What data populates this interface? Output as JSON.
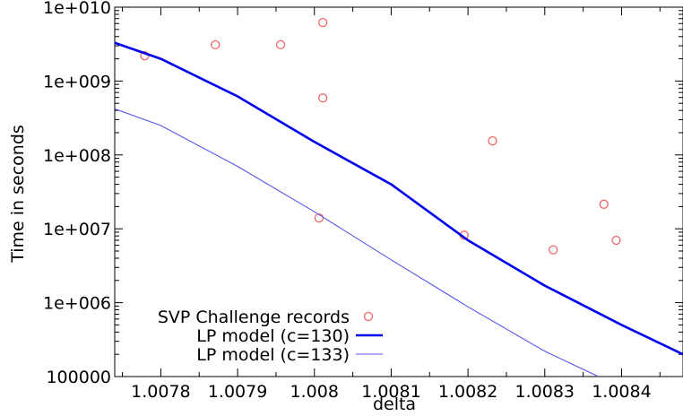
{
  "chart_data": {
    "type": "scatter",
    "title": "",
    "xlabel": "delta",
    "ylabel": "Time in seconds",
    "xlim": [
      1.00774,
      1.00848
    ],
    "ylim": [
      100000,
      10000000000
    ],
    "yscale": "log",
    "grid": false,
    "legend_position": "bottom-left",
    "x_ticks": [
      1.0078,
      1.0079,
      1.008,
      1.0081,
      1.0082,
      1.0083,
      1.0084
    ],
    "x_tick_labels": [
      "1.0078",
      "1.0079",
      "1.008",
      "1.0081",
      "1.0082",
      "1.0083",
      "1.0084"
    ],
    "y_ticks": [
      100000,
      1000000,
      10000000,
      100000000,
      1000000000,
      10000000000
    ],
    "y_tick_labels": [
      "100000",
      "1e+006",
      "1e+007",
      "1e+008",
      "1e+009",
      "1e+010"
    ],
    "series": [
      {
        "name": "SVP Challenge records",
        "kind": "points",
        "color": "#f26666",
        "points": [
          {
            "x": 1.007779,
            "y": 2200000000
          },
          {
            "x": 1.007871,
            "y": 3100000000
          },
          {
            "x": 1.007956,
            "y": 3100000000
          },
          {
            "x": 1.008011,
            "y": 6200000000
          },
          {
            "x": 1.008011,
            "y": 590000000
          },
          {
            "x": 1.008006,
            "y": 14000000
          },
          {
            "x": 1.008195,
            "y": 8200000
          },
          {
            "x": 1.008232,
            "y": 155000000
          },
          {
            "x": 1.008311,
            "y": 5200000
          },
          {
            "x": 1.008377,
            "y": 21500000
          },
          {
            "x": 1.008393,
            "y": 7000000
          }
        ]
      },
      {
        "name": "LP model (c=130)",
        "kind": "line",
        "color": "#0000ee",
        "points": [
          {
            "x": 1.00774,
            "y": 3300000000
          },
          {
            "x": 1.0078,
            "y": 2000000000
          },
          {
            "x": 1.0079,
            "y": 620000000
          },
          {
            "x": 1.008,
            "y": 150000000
          },
          {
            "x": 1.0081,
            "y": 40000000
          },
          {
            "x": 1.0082,
            "y": 7000000
          },
          {
            "x": 1.0083,
            "y": 1700000
          },
          {
            "x": 1.0084,
            "y": 500000
          },
          {
            "x": 1.00848,
            "y": 200000
          }
        ]
      },
      {
        "name": "LP model (c=133)",
        "kind": "line",
        "color": "#5555ee",
        "points": [
          {
            "x": 1.00774,
            "y": 420000000
          },
          {
            "x": 1.0078,
            "y": 250000000
          },
          {
            "x": 1.0079,
            "y": 70000000
          },
          {
            "x": 1.008,
            "y": 17000000
          },
          {
            "x": 1.0081,
            "y": 3800000
          },
          {
            "x": 1.0082,
            "y": 880000
          },
          {
            "x": 1.0083,
            "y": 220000
          },
          {
            "x": 1.00837,
            "y": 100000
          }
        ]
      }
    ]
  }
}
